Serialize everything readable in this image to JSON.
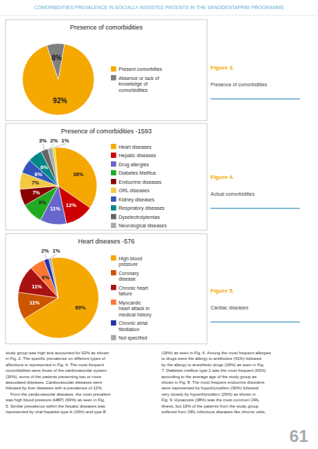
{
  "page": {
    "title": "COMORBIDITIES PREVALENCE IN SOCIALLY ASSISTED PATIENTS IN THE SANODENTAPRIM PROGRAMME",
    "body_text": [
      "study group was high and accounted for 92% as shown\nin Fig. 2. The specific prevalence on different types of\naffections is represented in Fig. 4. The most frequent\ncomorbidities were those of the cardiovascular system\n(36%), some of the patients presenting two or more\nassociated diseases. Cardiovascular diseases were\nfollowed by liver diseases with a prevalence of 12%.\n    From the cardiovascular diseases, the most prevalent\nwas high blood pressure (HBP) (69%) as seen in Fig.\n5. Similar prevalence within the hepatic diseases was\nrepresented by viral hepatitis type A (19%) and type B",
      "(18%) as seen in Fig. 6. Among the most frequent allergies\nto drugs were the allergy to antibiotics (41%) followed\nby the allergy to anesthetic drugs (18%) as seen in Fig.\n7. Diabetes mellitus type 2 was the most frequent (63%)\naccording to the average age of the study group as\nshown in Fig. 8. The most frequent endocrine disorders\nwere represented by hypothyroidism (30%) followed\nvery closely by hyperthyroidism (29%) as shown in\nFig. 9. Hyoacusis (38%) was the most common ORL\nillness, but 19% of the patients from the study group\nsuffered from ORL infectious diseases like chronic otitis,"
    ],
    "page_number": "61"
  },
  "chart_data": [
    {
      "type": "pie",
      "title": "Presence of comorbidities",
      "categories": [
        "Present comorbities",
        "Absence or lack of\nknowledge of\ncomorbidities"
      ],
      "values": [
        92,
        8
      ],
      "value_labels": [
        "92%",
        "8%"
      ],
      "colors": [
        "#f5a800",
        "#808080"
      ],
      "data_labels": true,
      "legend": "right",
      "annotations": [
        "Figure 3.",
        "Presence of comorbidities"
      ]
    },
    {
      "type": "pie",
      "title": "Presence of comorbidities -1593",
      "categories": [
        "Heart diseases",
        "Hepatic diseases",
        "Drug allergies",
        "Diabetes Mellitus",
        "Endocrine diseases",
        "ORL diseases",
        "Kidney diseases",
        "Respiratory diseases",
        "Dyselectrolytemias",
        "Neurological diseases",
        null
      ],
      "values": [
        36,
        12,
        11,
        9,
        7,
        7,
        6,
        6,
        3,
        2,
        1
      ],
      "value_labels": [
        "36%",
        "12%",
        "11%",
        "9%",
        "7%",
        "7%",
        "6%",
        "6%",
        "3%",
        "2%",
        "1%"
      ],
      "colors": [
        "#f5a800",
        "#cc0000",
        "#6666cc",
        "#22aa22",
        "#880000",
        "#f5c842",
        "#3355bb",
        "#008888",
        "#666666",
        "#aaaaaa",
        "#dddd00"
      ],
      "data_labels": true,
      "legend": "right",
      "annotations": [
        "Figure 4.",
        "Actual comorbidities"
      ]
    },
    {
      "type": "pie",
      "title": "Heart diseases -576",
      "categories": [
        "High blood\npressure",
        "Coronary\ndisease",
        "Chronic heart\nfailure",
        "Myocardic\nheart attack in\nmedical history",
        "Chronic atrial\nfibrillation",
        "Not specified"
      ],
      "values": [
        69,
        11,
        11,
        6,
        2,
        1
      ],
      "value_labels": [
        "69%",
        "11%",
        "11%",
        "6%",
        "2%",
        "1%"
      ],
      "colors": [
        "#f5a800",
        "#cc5500",
        "#aa1111",
        "#ff7733",
        "#2233aa",
        "#aaaaaa"
      ],
      "data_labels": true,
      "legend": "right",
      "annotations": [
        "Figure 5.",
        "Cardiac diseases"
      ]
    }
  ]
}
